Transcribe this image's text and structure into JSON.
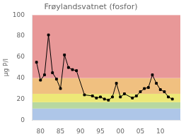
{
  "chart_data": {
    "type": "line",
    "title": "Frøylandsvatnet (fosfor)",
    "ylabel": "µg P/l",
    "x": [
      79,
      80,
      81,
      82,
      83,
      84,
      85,
      86,
      87,
      88,
      89,
      91,
      93,
      94,
      95,
      96,
      97,
      98,
      99,
      100,
      101,
      103,
      104,
      105,
      106,
      107,
      108,
      109,
      110,
      111,
      112,
      113
    ],
    "values": [
      55,
      38,
      43,
      81,
      45,
      39,
      30,
      62,
      50,
      48,
      47,
      24,
      23,
      21,
      22,
      20,
      19,
      22,
      35,
      22,
      25,
      21,
      23,
      27,
      30,
      31,
      43,
      35,
      29,
      27,
      22,
      20
    ],
    "color": "#000000",
    "marker": "square",
    "xlim": [
      78,
      115
    ],
    "ylim": [
      0,
      100
    ],
    "xticks": [
      80,
      85,
      90,
      95,
      {
        "value": 100,
        "label": "00"
      },
      {
        "value": 105,
        "label": "05"
      },
      {
        "value": 110,
        "label": "10"
      }
    ],
    "yticks": [
      0,
      20,
      40,
      60,
      80,
      100
    ],
    "bands": [
      {
        "ymin": 0,
        "ymax": 11,
        "color": "#aec6e8"
      },
      {
        "ymin": 11,
        "ymax": 17,
        "color": "#b8d8a0"
      },
      {
        "ymin": 17,
        "ymax": 25,
        "color": "#ede877"
      },
      {
        "ymin": 25,
        "ymax": 40,
        "color": "#f0c080"
      },
      {
        "ymin": 40,
        "ymax": 100,
        "color": "#e89898"
      }
    ],
    "grid": false
  }
}
